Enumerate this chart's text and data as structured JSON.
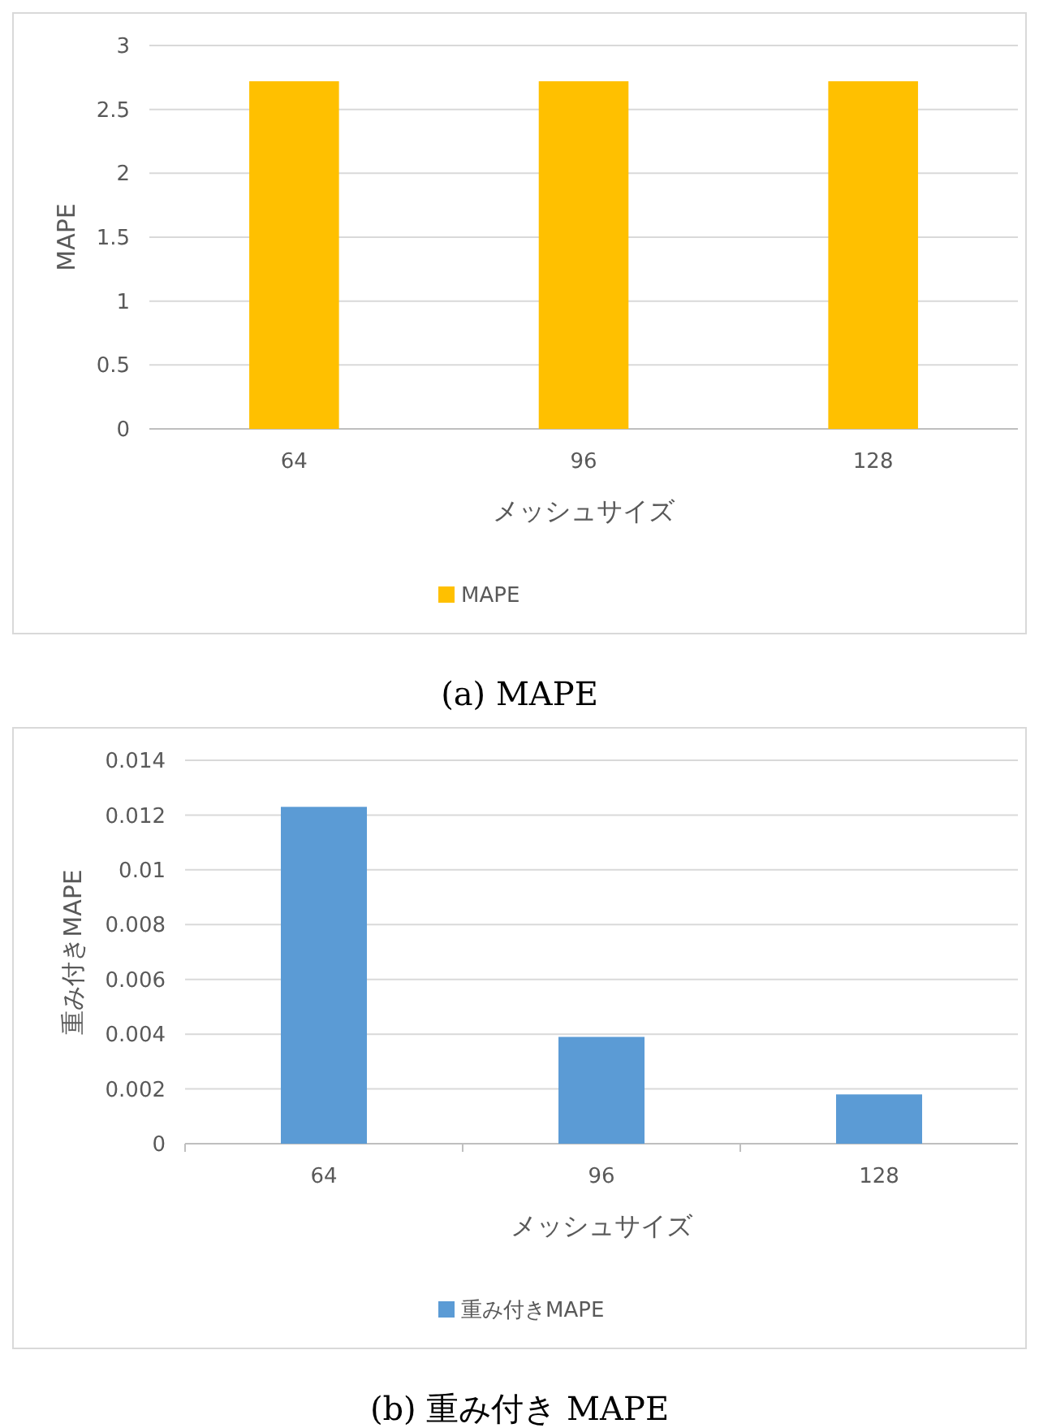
{
  "chart_data": [
    {
      "type": "bar",
      "categories": [
        "64",
        "96",
        "128"
      ],
      "xlabel": "メッシュサイズ",
      "ylabel": "MAPE",
      "series": [
        {
          "name": "MAPE",
          "color": "#ffc000",
          "values": [
            2.72,
            2.72,
            2.72
          ]
        }
      ],
      "ylim": [
        0,
        3
      ],
      "yticks": [
        0,
        0.5,
        1,
        1.5,
        2,
        2.5,
        3
      ],
      "grid": "y",
      "legend": "bottom",
      "annotations": [
        "(a) MAPE"
      ]
    },
    {
      "type": "bar",
      "categories": [
        "64",
        "96",
        "128"
      ],
      "xlabel": "メッシュサイズ",
      "ylabel": "重み付きMAPE",
      "series": [
        {
          "name": "重み付きMAPE",
          "color": "#5b9bd5",
          "values": [
            0.0123,
            0.0039,
            0.0018
          ]
        }
      ],
      "ylim": [
        0,
        0.014
      ],
      "yticks": [
        0,
        0.002,
        0.004,
        0.006,
        0.008,
        0.01,
        0.012,
        0.014
      ],
      "grid": "y",
      "legend": "bottom",
      "annotations": [
        "(b) 重み付き MAPE"
      ]
    }
  ]
}
